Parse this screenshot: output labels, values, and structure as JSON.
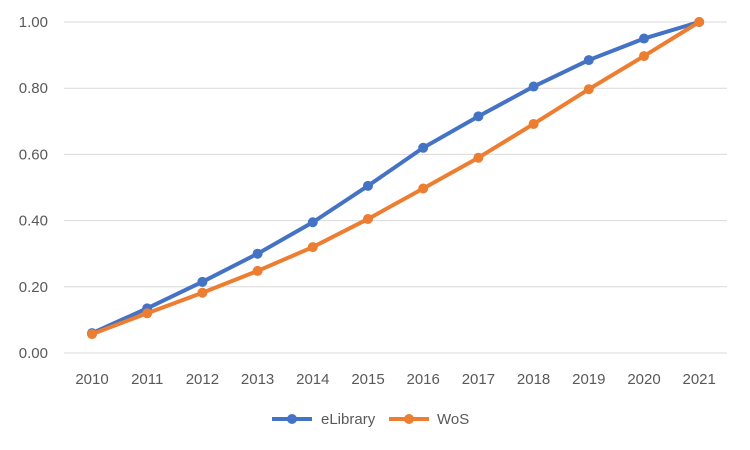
{
  "chart_data": {
    "type": "line",
    "title": "",
    "xlabel": "",
    "ylabel": "",
    "x": [
      "2010",
      "2011",
      "2012",
      "2013",
      "2014",
      "2015",
      "2016",
      "2017",
      "2018",
      "2019",
      "2020",
      "2021"
    ],
    "ylim": [
      0,
      1
    ],
    "y_ticks": [
      "0.00",
      "0.20",
      "0.40",
      "0.60",
      "0.80",
      "1.00"
    ],
    "grid": "horizontal",
    "legend_position": "bottom",
    "series": [
      {
        "name": "eLibrary",
        "color": "#4472c4",
        "values": [
          0.06,
          0.135,
          0.215,
          0.3,
          0.395,
          0.505,
          0.62,
          0.715,
          0.805,
          0.885,
          0.95,
          1.0
        ]
      },
      {
        "name": "WoS",
        "color": "#ed7d31",
        "values": [
          0.057,
          0.12,
          0.182,
          0.248,
          0.32,
          0.405,
          0.497,
          0.59,
          0.692,
          0.797,
          0.897,
          1.0
        ]
      }
    ]
  }
}
